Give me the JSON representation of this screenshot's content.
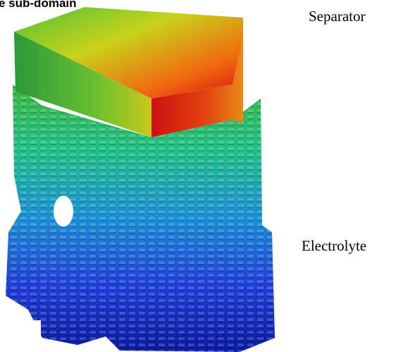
{
  "labels": {
    "title": "e sub-domain",
    "separator": "Separator",
    "electrolyte": "Electrolyte"
  }
}
